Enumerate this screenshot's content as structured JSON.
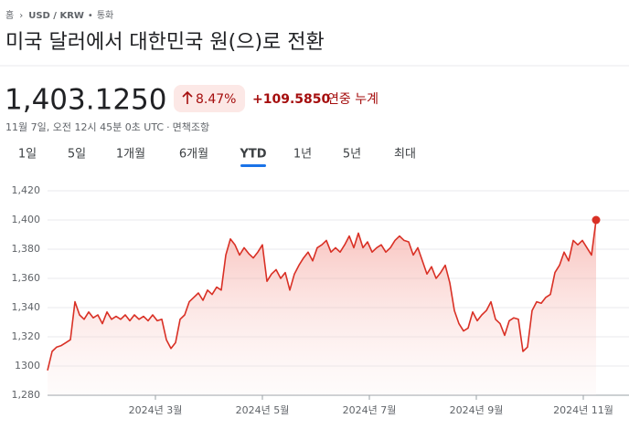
{
  "breadcrumb": [
    "홈",
    "USD / KRW",
    "통화"
  ],
  "title": "미국 달러에서 대한민국 원(으)로 전환",
  "price": "1,403.1250",
  "change_percent": "8.47%",
  "change": "+109.5850",
  "period_label": "연중 누계",
  "timestamp": "11월 7일, 오전 12시 45분 0초 UTC",
  "disclaimer": "면책조항",
  "tabs": [
    "1일",
    "5일",
    "1개월",
    "6개월",
    "YTD",
    "1년",
    "5년",
    "최대"
  ],
  "selected_tab": 4,
  "chart_data": {
    "type": "line",
    "color": "#d93025",
    "grid": true,
    "xlim": [
      0,
      120
    ],
    "xticks": [
      {
        "value": 23.6,
        "label": "2024년 3월"
      },
      {
        "value": 47,
        "label": "2024년 5월"
      },
      {
        "value": 70.4,
        "label": "2024년 7월"
      },
      {
        "value": 93.8,
        "label": "2024년 9월"
      },
      {
        "value": 117.2,
        "label": "2024년 11월"
      }
    ],
    "ylim": [
      1280,
      1420
    ],
    "yticks": [
      {
        "value": 1280,
        "label": "1,280"
      },
      1300,
      {
        "value": 1320,
        "label": "1,320"
      },
      {
        "value": 1340,
        "label": "1,340"
      },
      {
        "value": 1360,
        "label": "1,360"
      },
      {
        "value": 1380,
        "label": "1,380"
      },
      {
        "value": 1400,
        "label": "1,400"
      },
      {
        "value": 1420,
        "label": "1,420"
      }
    ],
    "values": [
      1297,
      1310,
      1313,
      1314,
      1316,
      1318,
      1344,
      1335,
      1332,
      1337,
      1333,
      1335,
      1329,
      1337,
      1332,
      1334,
      1332,
      1335,
      1331,
      1335,
      1332,
      1334,
      1331,
      1335,
      1331,
      1332,
      1318,
      1312,
      1316,
      1332,
      1335,
      1344,
      1347,
      1350,
      1345,
      1352,
      1349,
      1354,
      1352,
      1376,
      1387,
      1383,
      1376,
      1381,
      1377,
      1374,
      1378,
      1383,
      1358,
      1363,
      1366,
      1360,
      1364,
      1352,
      1363,
      1369,
      1374,
      1378,
      1372,
      1381,
      1383,
      1386,
      1378,
      1381,
      1378,
      1383,
      1389,
      1381,
      1391,
      1381,
      1385,
      1378,
      1381,
      1383,
      1378,
      1381,
      1386,
      1389,
      1386,
      1385,
      1376,
      1381,
      1372,
      1363,
      1368,
      1360,
      1364,
      1369,
      1357,
      1338,
      1329,
      1324,
      1326,
      1337,
      1331,
      1335,
      1338,
      1344,
      1332,
      1329,
      1321,
      1331,
      1333,
      1332,
      1310,
      1313,
      1338,
      1344,
      1343,
      1347,
      1349,
      1364,
      1369,
      1378,
      1372,
      1386,
      1383,
      1386,
      1381,
      1376,
      1400
    ]
  }
}
